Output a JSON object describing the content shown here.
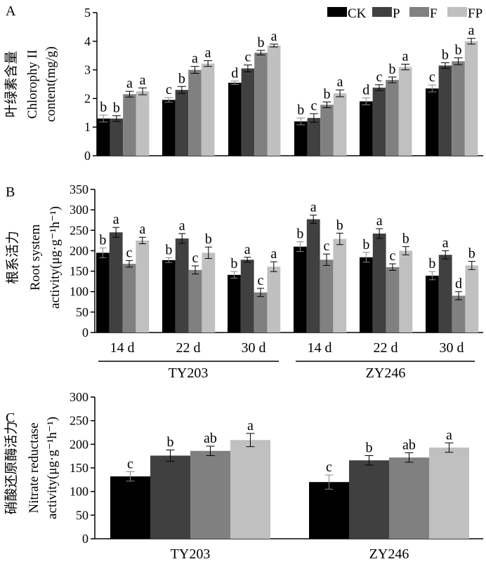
{
  "legend": {
    "position": "top-right",
    "entries": [
      {
        "name": "CK",
        "color": "#000000"
      },
      {
        "name": "P",
        "color": "#404040"
      },
      {
        "name": "F",
        "color": "#808080"
      },
      {
        "name": "FP",
        "color": "#c0c0c0"
      }
    ]
  },
  "chart_data": [
    {
      "panel": "A",
      "type": "bar",
      "ylabel_cn": "叶绿素含量",
      "ylabel_en": [
        "Chlorophy II",
        "content(mg/g)"
      ],
      "ylim": [
        0,
        5
      ],
      "yticks": [
        0,
        1,
        2,
        3,
        4,
        5
      ],
      "categories": [
        "14 d",
        "22 d",
        "30 d",
        "14 d",
        "22 d",
        "30 d"
      ],
      "series": [
        {
          "name": "CK",
          "values": [
            1.3,
            1.95,
            2.55,
            1.2,
            1.9,
            2.35
          ],
          "errors": [
            0.12,
            0.08,
            0.06,
            0.12,
            0.12,
            0.12
          ],
          "letters": [
            "b",
            "c",
            "d",
            "b",
            "d",
            "c"
          ]
        },
        {
          "name": "P",
          "values": [
            1.3,
            2.3,
            3.05,
            1.32,
            2.38,
            3.15
          ],
          "errors": [
            0.1,
            0.12,
            0.12,
            0.15,
            0.1,
            0.1
          ],
          "letters": [
            "b",
            "b",
            "c",
            "c",
            "c",
            "b"
          ]
        },
        {
          "name": "F",
          "values": [
            2.15,
            3.0,
            3.6,
            1.78,
            2.65,
            3.3
          ],
          "errors": [
            0.1,
            0.12,
            0.08,
            0.1,
            0.1,
            0.12
          ],
          "letters": [
            "a",
            "a",
            "b",
            "b",
            "b",
            "b"
          ]
        },
        {
          "name": "FP",
          "values": [
            2.25,
            3.22,
            3.85,
            2.18,
            3.1,
            4.0
          ],
          "errors": [
            0.12,
            0.1,
            0.05,
            0.12,
            0.1,
            0.1
          ],
          "letters": [
            "a",
            "a",
            "a",
            "a",
            "a",
            "a"
          ]
        }
      ]
    },
    {
      "panel": "B",
      "type": "bar",
      "ylabel_cn": "根系活力",
      "ylabel_en": [
        "Root system",
        "activity(μg·g⁻¹h⁻¹)"
      ],
      "ylim": [
        0,
        350
      ],
      "yticks": [
        0,
        50,
        100,
        150,
        200,
        250,
        300,
        350
      ],
      "categories": [
        "14 d",
        "22 d",
        "30 d",
        "14 d",
        "22 d",
        "30 d"
      ],
      "groups": [
        "TY203",
        "ZY246"
      ],
      "series": [
        {
          "name": "CK",
          "values": [
            195,
            177,
            141,
            210,
            184,
            139
          ],
          "errors": [
            12,
            6,
            8,
            12,
            12,
            10
          ],
          "letters": [
            "b",
            "b",
            "b",
            "b",
            "b",
            "b"
          ]
        },
        {
          "name": "P",
          "values": [
            245,
            230,
            178,
            277,
            242,
            190
          ],
          "errors": [
            12,
            12,
            6,
            10,
            12,
            10
          ],
          "letters": [
            "a",
            "a",
            "a",
            "a",
            "a",
            "a"
          ]
        },
        {
          "name": "F",
          "values": [
            168,
            153,
            98,
            178,
            160,
            90
          ],
          "errors": [
            8,
            10,
            10,
            14,
            8,
            10
          ],
          "letters": [
            "c",
            "c",
            "c",
            "c",
            "c",
            "d"
          ]
        },
        {
          "name": "FP",
          "values": [
            225,
            195,
            161,
            229,
            200,
            164
          ],
          "errors": [
            8,
            14,
            12,
            14,
            10,
            10
          ],
          "letters": [
            "a",
            "b",
            "a",
            "b",
            "b",
            "b"
          ]
        }
      ]
    },
    {
      "panel": "C",
      "type": "bar",
      "ylabel_cn": "硝酸还原酶活力",
      "ylabel_en": [
        "Nitrate reductase",
        "activity(μg·g⁻¹h⁻¹)"
      ],
      "ylim": [
        0,
        300
      ],
      "yticks": [
        0,
        50,
        100,
        150,
        200,
        250,
        300
      ],
      "categories": [
        "TY203",
        "ZY246"
      ],
      "series": [
        {
          "name": "CK",
          "values": [
            132,
            120
          ],
          "errors": [
            10,
            15
          ],
          "letters": [
            "c",
            "c"
          ]
        },
        {
          "name": "P",
          "values": [
            176,
            166
          ],
          "errors": [
            12,
            10
          ],
          "letters": [
            "b",
            "b"
          ]
        },
        {
          "name": "F",
          "values": [
            186,
            172
          ],
          "errors": [
            10,
            10
          ],
          "letters": [
            "ab",
            "ab"
          ]
        },
        {
          "name": "FP",
          "values": [
            209,
            193
          ],
          "errors": [
            14,
            10
          ],
          "letters": [
            "a",
            "a"
          ]
        }
      ]
    }
  ]
}
